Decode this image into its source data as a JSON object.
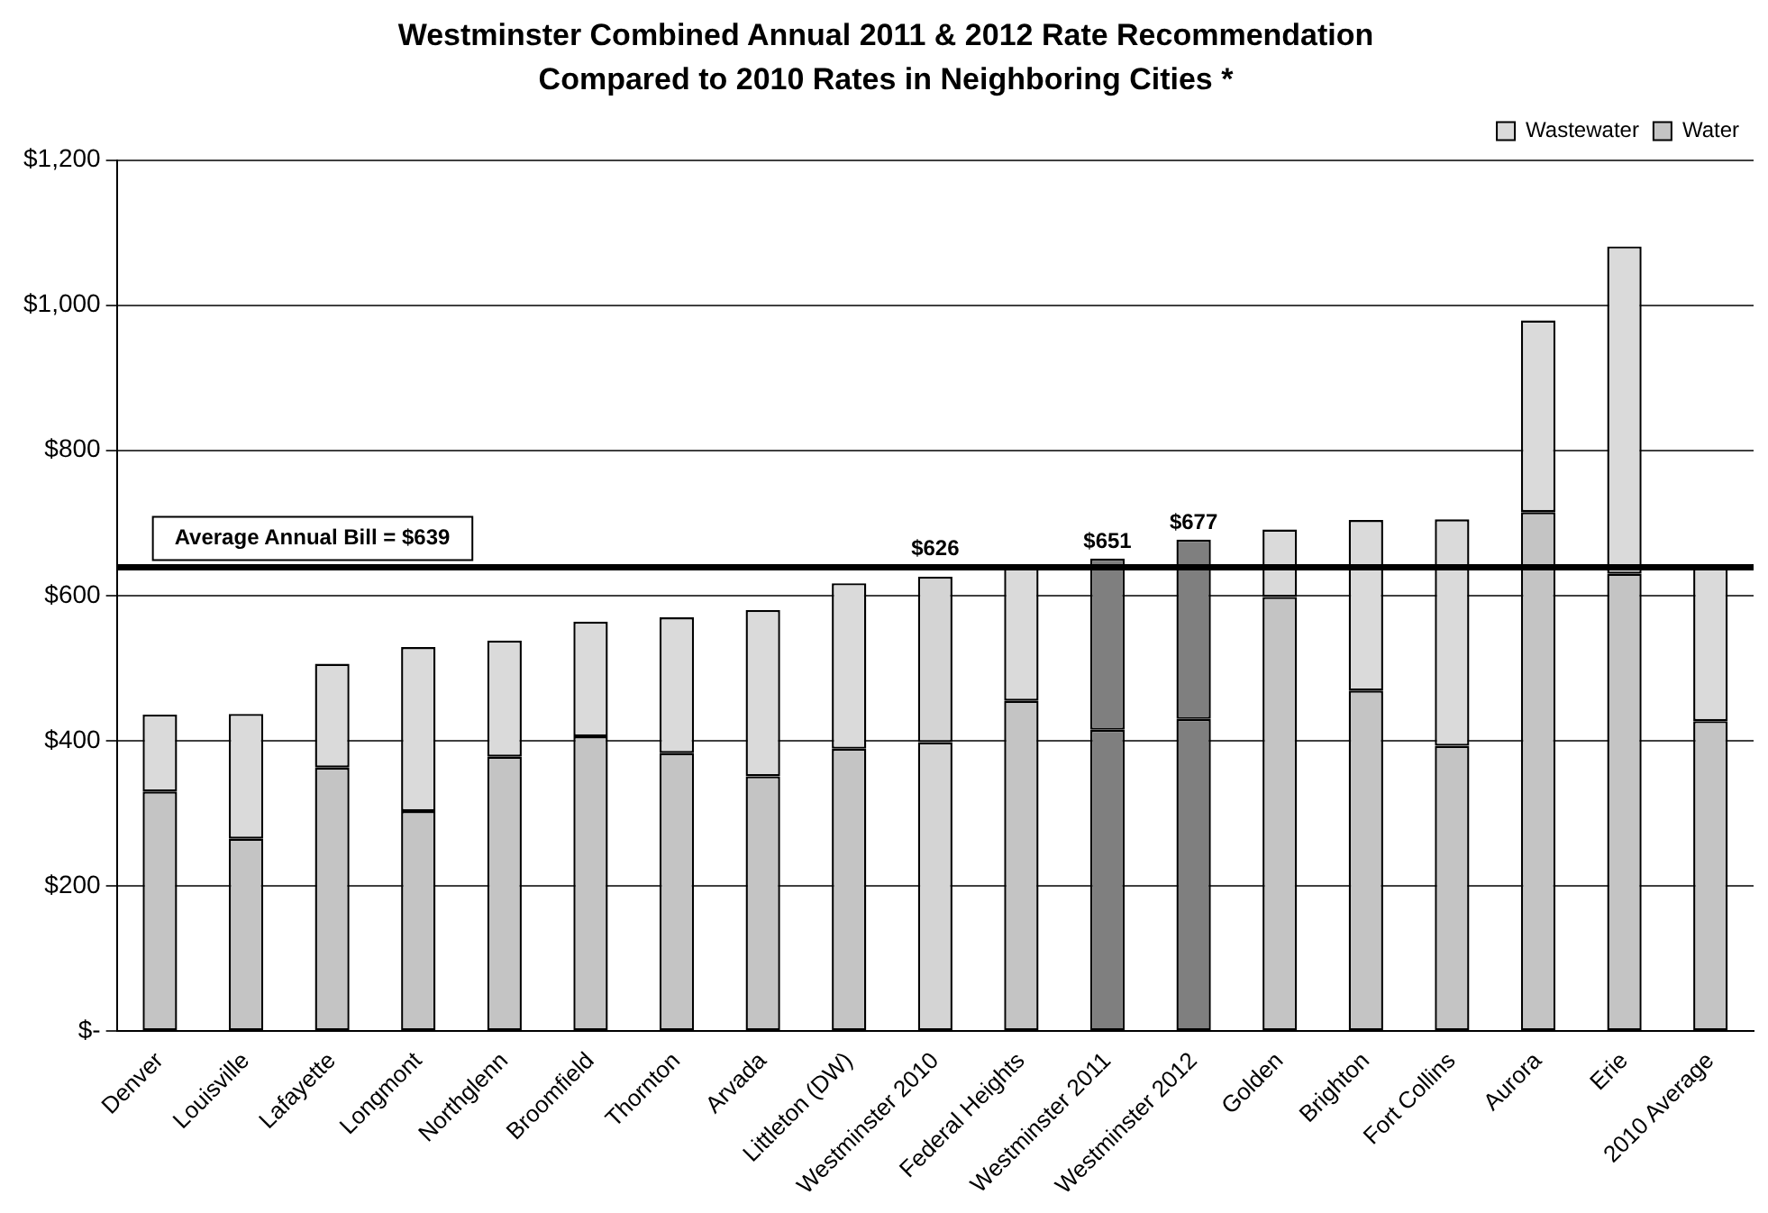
{
  "chart_data": {
    "type": "bar",
    "stacked": true,
    "title": "Westminster Combined Annual 2011 & 2012 Rate Recommendation",
    "subtitle": "Compared to 2010 Rates in Neighboring Cities *",
    "categories": [
      "Denver",
      "Louisville",
      "Lafayette",
      "Longmont",
      "Northglenn",
      "Broomfield",
      "Thornton",
      "Arvada",
      "Littleton (DW)",
      "Westminster 2010",
      "Federal Heights",
      "Westminster 2011",
      "Westminster 2012",
      "Golden",
      "Brighton",
      "Fort Collins",
      "Aurora",
      "Erie",
      "2010 Average"
    ],
    "series": [
      {
        "name": "Water",
        "color": "#c4c4c4",
        "colors": [
          "#c4c4c4",
          "#c4c4c4",
          "#c4c4c4",
          "#c4c4c4",
          "#c4c4c4",
          "#c4c4c4",
          "#c4c4c4",
          "#c4c4c4",
          "#c4c4c4",
          "#d4d4d4",
          "#c4c4c4",
          "#7f7f7f",
          "#7f7f7f",
          "#c4c4c4",
          "#c4c4c4",
          "#c4c4c4",
          "#c4c4c4",
          "#c4c4c4",
          "#c4c4c4"
        ],
        "values": [
          330,
          265,
          363,
          303,
          378,
          406,
          383,
          351,
          389,
          398,
          455,
          415,
          430,
          598,
          469,
          393,
          715,
          630,
          427
        ]
      },
      {
        "name": "Wastewater",
        "color": "#dadada",
        "colors": [
          "#dadada",
          "#dadada",
          "#dadada",
          "#dadada",
          "#dadada",
          "#dadada",
          "#dadada",
          "#dadada",
          "#dadada",
          "#d4d4d4",
          "#dadada",
          "#7f7f7f",
          "#7f7f7f",
          "#dadada",
          "#dadada",
          "#dadada",
          "#dadada",
          "#dadada",
          "#dadada"
        ],
        "values": [
          106,
          172,
          143,
          226,
          160,
          158,
          187,
          229,
          228,
          228,
          186,
          236,
          247,
          93,
          235,
          312,
          264,
          451,
          212
        ]
      }
    ],
    "totals": [
      null,
      null,
      null,
      null,
      null,
      null,
      null,
      null,
      null,
      "$626",
      null,
      "$651",
      "$677",
      null,
      null,
      null,
      null,
      null,
      null
    ],
    "ylim": [
      0,
      1200
    ],
    "yticks": [
      {
        "value": 0,
        "label": "$-"
      },
      {
        "value": 200,
        "label": "$200"
      },
      {
        "value": 400,
        "label": "$400"
      },
      {
        "value": 600,
        "label": "$600"
      },
      {
        "value": 800,
        "label": "$800"
      },
      {
        "value": 1000,
        "label": "$1,000"
      },
      {
        "value": 1200,
        "label": "$1,200"
      }
    ],
    "grid": "y",
    "legend": "top right",
    "ref_lines": [
      {
        "axis": "y",
        "value": 639,
        "label": "Average Annual Bill = $639",
        "color": "#000000"
      }
    ]
  }
}
